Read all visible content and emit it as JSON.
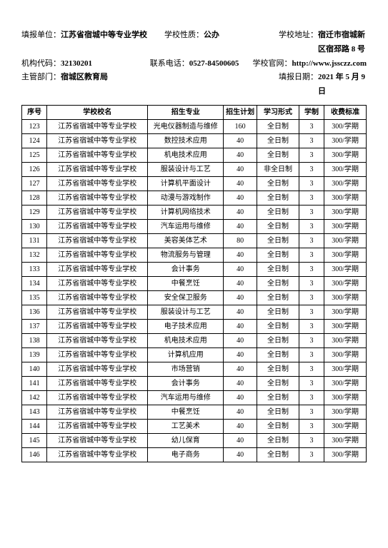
{
  "header": {
    "row1": {
      "l1": "填报单位：",
      "v1": "江苏省宿城中等专业学校",
      "l2": "学校性质：",
      "v2": "公办",
      "l3": "学校地址：",
      "v3": "宿迁市宿城新区宿邳路 8 号"
    },
    "row2": {
      "l1": "机构代码：",
      "v1": "32130201",
      "l2": "联系电话：",
      "v2": "0527-84500605",
      "l3": "学校官网：",
      "v3": "http://www.jssczz.com"
    },
    "row3": {
      "l1": "主管部门：",
      "v1": "宿城区教育局",
      "l3": "填报日期：",
      "v3": "2021 年 5 月 9 日"
    }
  },
  "table": {
    "columns": [
      "序号",
      "学校校名",
      "招生专业",
      "招生计划",
      "学习形式",
      "学制",
      "收费标准"
    ],
    "rows": [
      [
        "123",
        "江苏省宿城中等专业学校",
        "光电仪器制造与维修",
        "160",
        "全日制",
        "3",
        "300/学期"
      ],
      [
        "124",
        "江苏省宿城中等专业学校",
        "数控技术应用",
        "40",
        "全日制",
        "3",
        "300/学期"
      ],
      [
        "125",
        "江苏省宿城中等专业学校",
        "机电技术应用",
        "40",
        "全日制",
        "3",
        "300/学期"
      ],
      [
        "126",
        "江苏省宿城中等专业学校",
        "服装设计与工艺",
        "40",
        "非全日制",
        "3",
        "300/学期"
      ],
      [
        "127",
        "江苏省宿城中等专业学校",
        "计算机平面设计",
        "40",
        "全日制",
        "3",
        "300/学期"
      ],
      [
        "128",
        "江苏省宿城中等专业学校",
        "动漫与游戏制作",
        "40",
        "全日制",
        "3",
        "300/学期"
      ],
      [
        "129",
        "江苏省宿城中等专业学校",
        "计算机网络技术",
        "40",
        "全日制",
        "3",
        "300/学期"
      ],
      [
        "130",
        "江苏省宿城中等专业学校",
        "汽车运用与维修",
        "40",
        "全日制",
        "3",
        "300/学期"
      ],
      [
        "131",
        "江苏省宿城中等专业学校",
        "美容美体艺术",
        "80",
        "全日制",
        "3",
        "300/学期"
      ],
      [
        "132",
        "江苏省宿城中等专业学校",
        "物流服务与管理",
        "40",
        "全日制",
        "3",
        "300/学期"
      ],
      [
        "133",
        "江苏省宿城中等专业学校",
        "会计事务",
        "40",
        "全日制",
        "3",
        "300/学期"
      ],
      [
        "134",
        "江苏省宿城中等专业学校",
        "中餐烹饪",
        "40",
        "全日制",
        "3",
        "300/学期"
      ],
      [
        "135",
        "江苏省宿城中等专业学校",
        "安全保卫服务",
        "40",
        "全日制",
        "3",
        "300/学期"
      ],
      [
        "136",
        "江苏省宿城中等专业学校",
        "服装设计与工艺",
        "40",
        "全日制",
        "3",
        "300/学期"
      ],
      [
        "137",
        "江苏省宿城中等专业学校",
        "电子技术应用",
        "40",
        "全日制",
        "3",
        "300/学期"
      ],
      [
        "138",
        "江苏省宿城中等专业学校",
        "机电技术应用",
        "40",
        "全日制",
        "3",
        "300/学期"
      ],
      [
        "139",
        "江苏省宿城中等专业学校",
        "计算机应用",
        "40",
        "全日制",
        "3",
        "300/学期"
      ],
      [
        "140",
        "江苏省宿城中等专业学校",
        "市场营销",
        "40",
        "全日制",
        "3",
        "300/学期"
      ],
      [
        "141",
        "江苏省宿城中等专业学校",
        "会计事务",
        "40",
        "全日制",
        "3",
        "300/学期"
      ],
      [
        "142",
        "江苏省宿城中等专业学校",
        "汽车运用与维修",
        "40",
        "全日制",
        "3",
        "300/学期"
      ],
      [
        "143",
        "江苏省宿城中等专业学校",
        "中餐烹饪",
        "40",
        "全日制",
        "3",
        "300/学期"
      ],
      [
        "144",
        "江苏省宿城中等专业学校",
        "工艺美术",
        "40",
        "全日制",
        "3",
        "300/学期"
      ],
      [
        "145",
        "江苏省宿城中等专业学校",
        "幼儿保育",
        "40",
        "全日制",
        "3",
        "300/学期"
      ],
      [
        "146",
        "江苏省宿城中等专业学校",
        "电子商务",
        "40",
        "全日制",
        "3",
        "300/学期"
      ]
    ]
  }
}
